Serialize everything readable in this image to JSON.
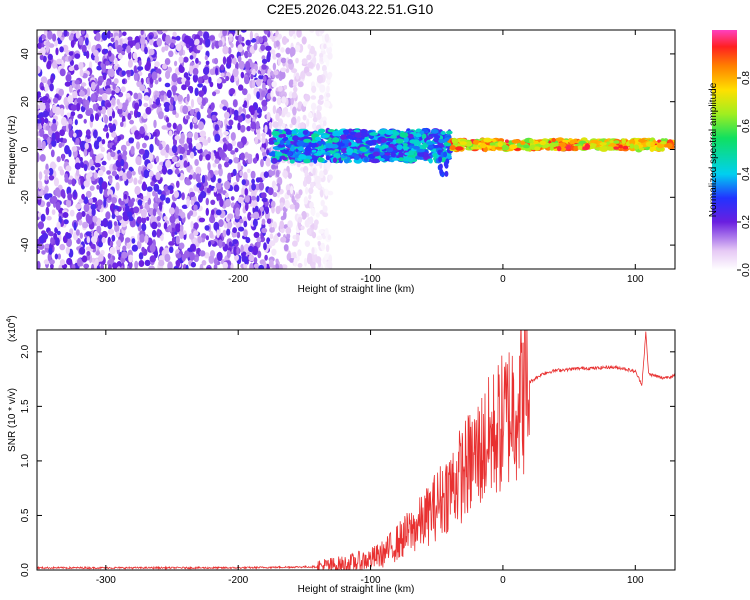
{
  "title": "C2E5.2026.043.22.51.G10",
  "chart_data": [
    {
      "type": "heatmap",
      "xlabel": "Height of straight line (km)",
      "ylabel": "Frequency (Hz)",
      "xlim": [
        -352,
        130
      ],
      "ylim": [
        -50,
        50
      ],
      "x_ticks": [
        -300,
        -200,
        -100,
        0,
        100
      ],
      "y_ticks": [
        -40,
        -20,
        0,
        20,
        40
      ],
      "colorbar": {
        "label": "Normalized spectral amplitude",
        "range": [
          0,
          1
        ],
        "ticks": [
          0.0,
          0.2,
          0.4,
          0.6,
          0.8
        ],
        "tick_labels": [
          "0.0",
          "0.2",
          "0.4",
          "0.6",
          "0.8"
        ]
      },
      "regions": [
        {
          "name": "scattered noise",
          "x": [
            -352,
            -175
          ],
          "freq": [
            -50,
            50
          ],
          "amplitude": [
            0.05,
            0.25
          ]
        },
        {
          "name": "fading noise",
          "x": [
            -175,
            -130
          ],
          "freq": [
            -50,
            50
          ],
          "amplitude": [
            0.02,
            0.12
          ]
        },
        {
          "name": "broad signal band",
          "x": [
            -175,
            -40
          ],
          "freq": [
            -5,
            8
          ],
          "amplitude": [
            0.2,
            0.5
          ]
        },
        {
          "name": "narrow signal band",
          "x": [
            -40,
            130
          ],
          "freq": [
            0,
            4
          ],
          "amplitude": [
            0.6,
            0.95
          ]
        }
      ]
    },
    {
      "type": "line",
      "xlabel": "Height of straight line (km)",
      "ylabel": "SNR (10 * v/v)",
      "y_scale_label": "(x10",
      "y_scale_exp": "4",
      "y_scale_suffix": ")",
      "xlim": [
        -352,
        130
      ],
      "ylim": [
        0,
        2.2
      ],
      "x_ticks": [
        -300,
        -200,
        -100,
        0,
        100
      ],
      "y_ticks": [
        0.0,
        0.5,
        1.0,
        1.5,
        2.0
      ],
      "y_tick_labels": [
        "0.0",
        "0.5",
        "1.0",
        "1.5",
        "2.0"
      ],
      "color": "#e83030",
      "series": [
        {
          "name": "SNR",
          "x": [
            -352,
            -200,
            -140,
            -120,
            -100,
            -90,
            -80,
            -70,
            -60,
            -50,
            -40,
            -30,
            -20,
            -10,
            0,
            10,
            20,
            30,
            40,
            50,
            60,
            70,
            80,
            90,
            100,
            105,
            108,
            110,
            120,
            130
          ],
          "y": [
            0.02,
            0.02,
            0.03,
            0.05,
            0.1,
            0.15,
            0.25,
            0.35,
            0.45,
            0.6,
            0.75,
            0.9,
            1.05,
            1.2,
            1.35,
            1.55,
            1.72,
            1.8,
            1.83,
            1.84,
            1.85,
            1.85,
            1.86,
            1.85,
            1.82,
            1.7,
            2.18,
            1.8,
            1.76,
            1.78
          ]
        }
      ]
    }
  ]
}
